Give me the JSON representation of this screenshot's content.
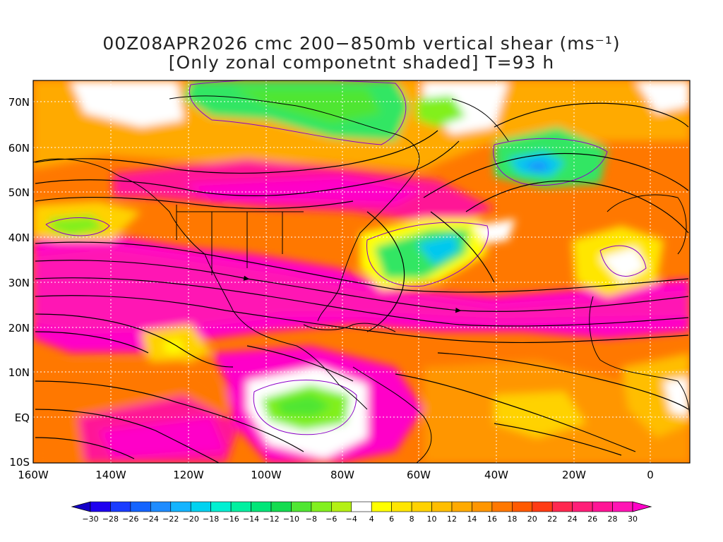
{
  "title": {
    "line1": "00Z08APR2026 cmc 200−850mb vertical shear (ms⁻¹)",
    "line2": "[Only zonal componetnt shaded] T=93 h"
  },
  "lat_labels": [
    "70N",
    "60N",
    "50N",
    "40N",
    "30N",
    "20N",
    "10N",
    "EQ",
    "10S"
  ],
  "lon_labels": [
    "160W",
    "140W",
    "120W",
    "100W",
    "80W",
    "60W",
    "40W",
    "20W",
    "0"
  ],
  "colorbar": {
    "labels": [
      "−30",
      "−28",
      "−26",
      "−24",
      "−22",
      "−20",
      "−18",
      "−16",
      "−14",
      "−12",
      "−10",
      "−8",
      "−6",
      "−4",
      "4",
      "6",
      "8",
      "10",
      "12",
      "14",
      "16",
      "18",
      "20",
      "22",
      "24",
      "26",
      "28",
      "30"
    ],
    "colors": [
      "#1e00f0",
      "#1a3cff",
      "#1464ff",
      "#1e8cff",
      "#14b4ff",
      "#00d2f0",
      "#00f0d2",
      "#00f0a0",
      "#00e678",
      "#14dc50",
      "#50e632",
      "#82f01e",
      "#b4f014",
      "#ffffff",
      "#ffff00",
      "#ffe600",
      "#ffd200",
      "#ffbe00",
      "#ffaa00",
      "#ff9600",
      "#ff7800",
      "#ff5a00",
      "#ff3c14",
      "#ff2850",
      "#ff1e78",
      "#ff1496",
      "#ff14b4"
    ],
    "under_color": "#1400c8",
    "over_color": "#ff00c8"
  },
  "colors": {
    "low_shear": "#ffffff",
    "moderate": "#ffcc00",
    "high": "#ff7800",
    "very_high": "#ff1496",
    "extreme": "#ff00c8",
    "negative_green": "#32e664",
    "negative_cyan": "#00c8f0",
    "negative_blue": "#1e8cff",
    "streamline": "#000000",
    "contour": "#8c00c8"
  }
}
